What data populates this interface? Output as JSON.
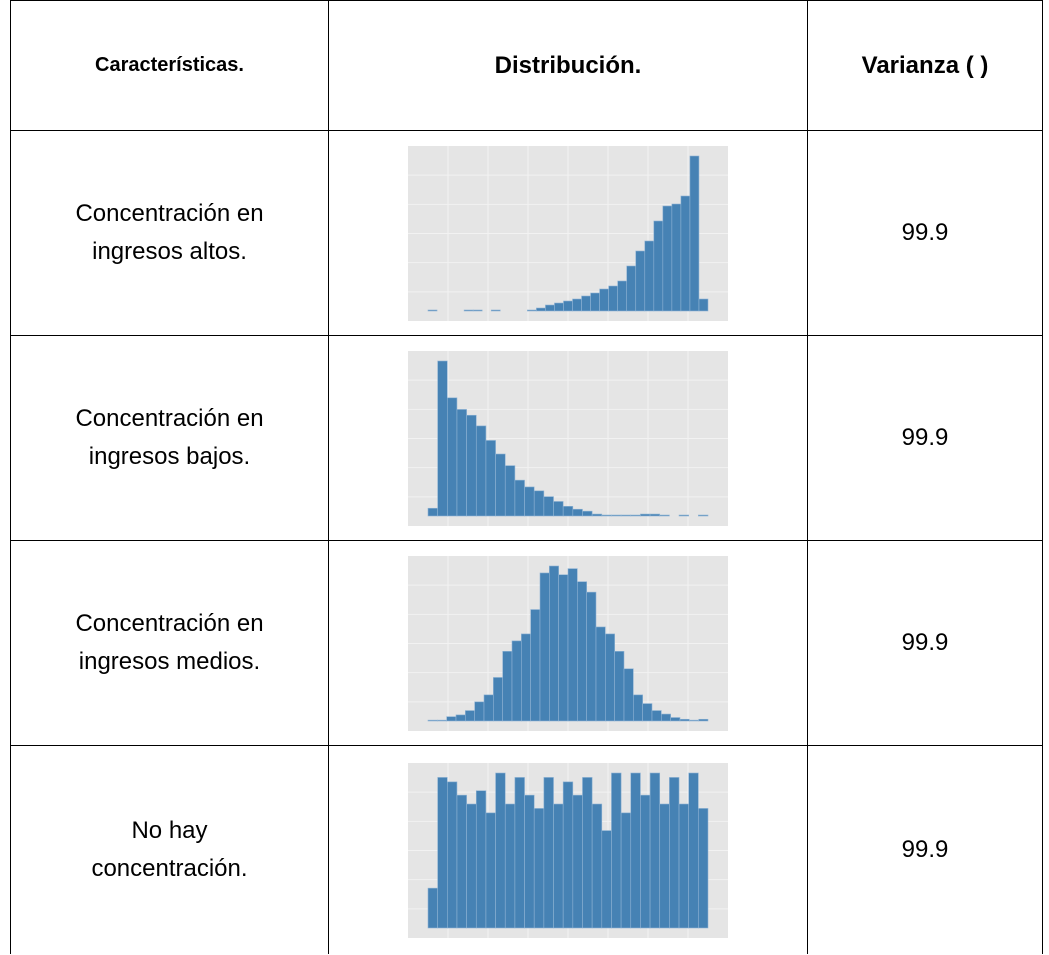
{
  "table": {
    "headers": [
      "Características.",
      "Distribución.",
      "Varianza (  )"
    ],
    "rows": [
      {
        "label": "Concentración en ingresos altos.",
        "distribution": {
          "type": "histogram",
          "values": [
            1,
            0,
            0,
            0,
            1,
            1,
            0,
            1,
            0,
            0,
            0,
            1,
            3,
            6,
            8,
            10,
            12,
            15,
            18,
            22,
            25,
            30,
            45,
            60,
            70,
            90,
            105,
            107,
            115,
            155,
            12
          ]
        },
        "variance": 99.9
      },
      {
        "label": "Concentración en ingresos bajos.",
        "distribution": {
          "type": "histogram",
          "values": [
            8,
            160,
            122,
            110,
            104,
            93,
            78,
            64,
            52,
            37,
            30,
            26,
            20,
            15,
            10,
            7,
            5,
            2,
            1,
            1,
            1,
            1,
            2,
            2,
            1,
            0,
            1,
            0,
            1
          ]
        },
        "variance": 99.9
      },
      {
        "label": "Concentración en ingresos medios.",
        "distribution": {
          "type": "histogram",
          "values": [
            1,
            1,
            5,
            7,
            12,
            22,
            30,
            50,
            80,
            92,
            100,
            128,
            170,
            178,
            168,
            175,
            160,
            148,
            108,
            100,
            80,
            60,
            30,
            20,
            12,
            8,
            4,
            2,
            1,
            2
          ]
        },
        "variance": 99.9
      },
      {
        "label": "No hay concentración.",
        "distribution": {
          "type": "histogram",
          "values": [
            45,
            170,
            165,
            150,
            140,
            155,
            130,
            175,
            140,
            170,
            150,
            135,
            170,
            140,
            165,
            150,
            170,
            140,
            110,
            175,
            130,
            175,
            150,
            175,
            140,
            170,
            140,
            175,
            135
          ]
        },
        "variance": 99.9
      }
    ]
  }
}
